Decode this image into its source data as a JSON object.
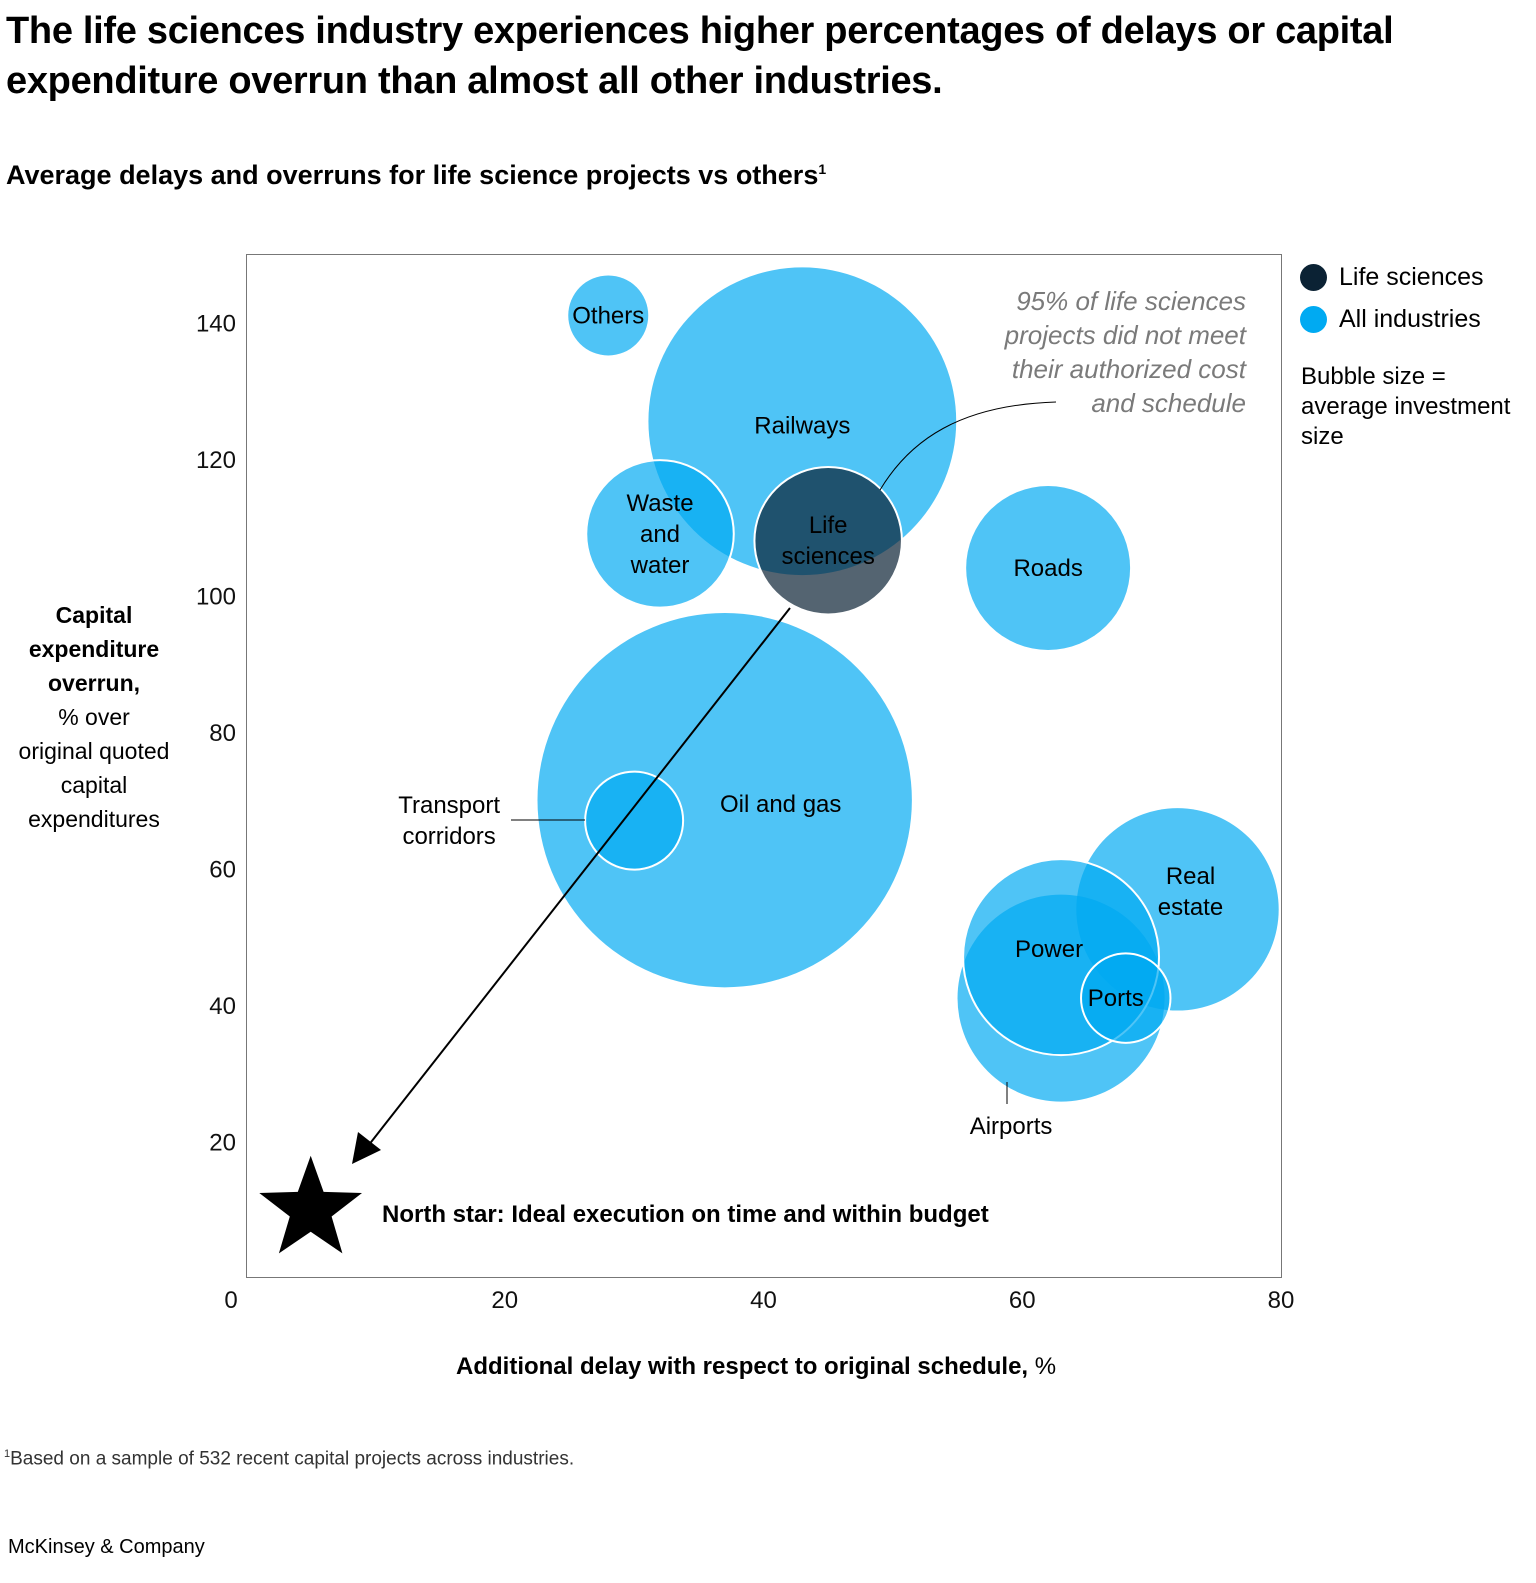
{
  "title": "The life sciences industry experiences higher percentages of delays or capital expenditure overrun than almost all other industries.",
  "subtitle": "Average delays and overruns for life science projects vs others",
  "subtitle_footnote_marker": "1",
  "footnote_marker": "1",
  "footnote": "Based on a sample of 532 recent capital projects across industries.",
  "brand": "McKinsey & Company",
  "legend": {
    "items": [
      {
        "label": "Life sciences",
        "color": "#0b2234"
      },
      {
        "label": "All industries",
        "color": "#00aaf2"
      }
    ],
    "size_note": "Bubble size = average investment size"
  },
  "annotation": [
    "95% of life sciences",
    "projects did not meet",
    "their authorized cost",
    "and schedule"
  ],
  "north_star_label": "North star: Ideal execution on time and within budget",
  "chart_data": {
    "type": "bubble",
    "title": "Average delays and overruns for life science projects vs others",
    "xlabel_bold": "Additional delay with respect to original schedule,",
    "xlabel_unit": " %",
    "ylabel_bold": [
      "Capital",
      "expenditure",
      "overrun,"
    ],
    "ylabel_rest": [
      "% over",
      "original quoted",
      "capital",
      "expenditures"
    ],
    "xlim": [
      0,
      80
    ],
    "ylim": [
      0,
      150
    ],
    "xticks": [
      "0",
      "20",
      "40",
      "60",
      "80"
    ],
    "yticks": [
      "20",
      "40",
      "60",
      "80",
      "100",
      "120",
      "140"
    ],
    "grid": false,
    "legend_position": "top-right",
    "series": [
      {
        "label": "Others",
        "group": "All industries",
        "x": 28,
        "y": 141,
        "size": 1.0
      },
      {
        "label": "Railways",
        "group": "All industries",
        "x": 43,
        "y": 125.5,
        "size": 14.8
      },
      {
        "label": "Waste\nand\nwater",
        "group": "All industries",
        "x": 32,
        "y": 109,
        "size": 3.4
      },
      {
        "label": "Roads",
        "group": "All industries",
        "x": 62,
        "y": 104,
        "size": 4.2
      },
      {
        "label": "Oil and gas",
        "group": "All industries",
        "x": 37,
        "y": 70,
        "size": 21.9
      },
      {
        "label": "Transport\ncorridors",
        "group": "All industries",
        "x": 30,
        "y": 67,
        "size": 1.5
      },
      {
        "label": "Real\nestate",
        "group": "All industries",
        "x": 72,
        "y": 54,
        "size": 6.4
      },
      {
        "label": "Airports",
        "group": "All industries",
        "x": 63,
        "y": 41,
        "size": 6.7
      },
      {
        "label": "Power",
        "group": "All industries",
        "x": 63,
        "y": 47,
        "size": 6.0
      },
      {
        "label": "Ports",
        "group": "All industries",
        "x": 68,
        "y": 41,
        "size": 1.25
      },
      {
        "label": "Life\nsciences",
        "group": "Life sciences",
        "x": 45,
        "y": 108,
        "size": 3.4
      }
    ],
    "north_star": {
      "x": 5,
      "y": 10
    }
  }
}
